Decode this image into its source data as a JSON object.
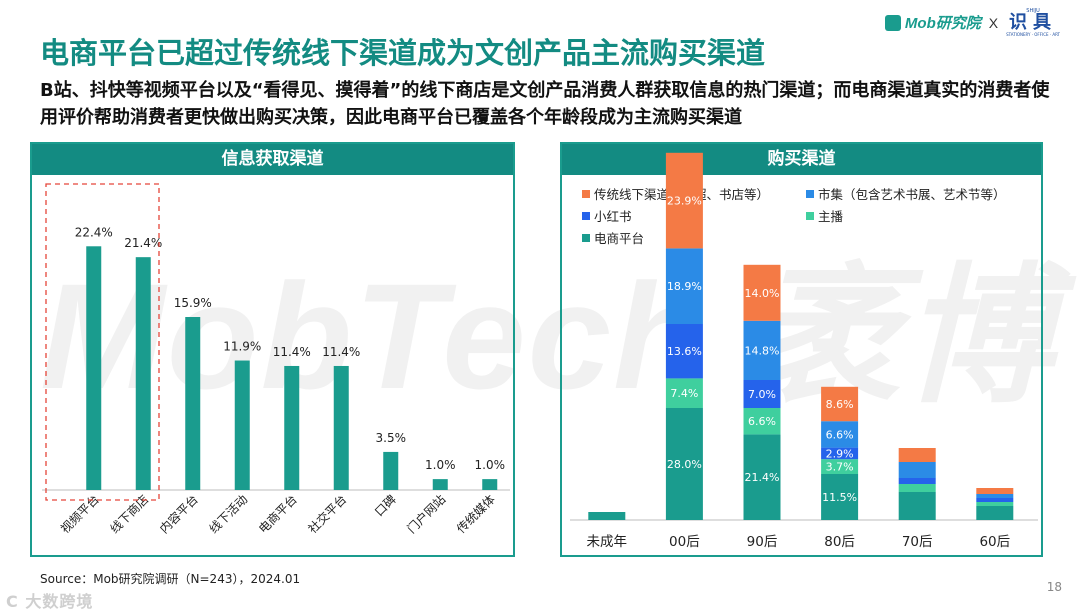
{
  "header": {
    "title": "电商平台已超过传统线下渠道成为文创产品主流购买渠道",
    "subtitle": "B站、抖快等视频平台以及“看得见、摸得着”的线下商店是文创产品消费人群获取信息的热门渠道；而电商渠道真实的消费者使用评价帮助消费者更快做出购买决策，因此电商平台已覆盖各个年龄段成为主流购买渠道",
    "logo_mob": "Mob研究院",
    "logo_x": "X",
    "logo_partner": "识具",
    "logo_partner_top": "SHIJU",
    "logo_partner_bottom": "STATIONERY · OFFICE · ART"
  },
  "watermark": "MobTech 袤博",
  "footer": {
    "source": "Source：Mob研究院调研（N=243），2024.01",
    "page_number": "18",
    "corner_mark": "C 大数跨境"
  },
  "colors": {
    "teal": "#1a9c8e",
    "orange": "#f47a45",
    "blue": "#2b8be6",
    "dark_blue": "#2563eb",
    "mint": "#3fcf9e",
    "dark_teal": "#138b82",
    "highlight_border": "#e5463a"
  },
  "chart_data": [
    {
      "type": "bar",
      "panel_title": "信息获取渠道",
      "categories": [
        "视频平台",
        "线下商店",
        "内容平台",
        "线下活动",
        "电商平台",
        "社交平台",
        "口碑",
        "门户网站",
        "传统媒体"
      ],
      "values": [
        22.4,
        21.4,
        15.9,
        11.9,
        11.4,
        11.4,
        3.5,
        1.0,
        1.0
      ],
      "labels": [
        "22.4%",
        "21.4%",
        "15.9%",
        "11.9%",
        "11.4%",
        "11.4%",
        "3.5%",
        "1.0%",
        "1.0%"
      ],
      "unit": "%",
      "ylim": [
        0,
        25
      ],
      "highlight_categories": [
        "视频平台",
        "线下商店"
      ],
      "color": "#1a9c8e"
    },
    {
      "type": "bar",
      "stacked": true,
      "panel_title": "购买渠道",
      "categories": [
        "未成年",
        "00后",
        "90后",
        "80后",
        "70后",
        "60后"
      ],
      "series": [
        {
          "name": "电商平台",
          "color": "#1a9c8e",
          "values": [
            2.0,
            28.0,
            21.4,
            11.5,
            7.0,
            3.5
          ],
          "labels": [
            "",
            "28.0%",
            "21.4%",
            "11.5%",
            "",
            ""
          ]
        },
        {
          "name": "主播",
          "color": "#3fcf9e",
          "values": [
            0,
            7.4,
            6.6,
            3.7,
            2.0,
            1.0
          ],
          "labels": [
            "",
            "7.4%",
            "6.6%",
            "3.7%",
            "",
            ""
          ]
        },
        {
          "name": "小红书",
          "color": "#2563eb",
          "values": [
            0,
            13.6,
            7.0,
            2.9,
            1.5,
            1.0
          ],
          "labels": [
            "",
            "13.6%",
            "7.0%",
            "2.9%",
            "",
            ""
          ]
        },
        {
          "name": "市集（包含艺术书展、艺术节等）",
          "color": "#2b8be6",
          "values": [
            0,
            18.9,
            14.8,
            6.6,
            4.0,
            1.0
          ],
          "labels": [
            "",
            "18.9%",
            "14.8%",
            "6.6%",
            "",
            ""
          ]
        },
        {
          "name": "传统线下渠道（商超、书店等）",
          "color": "#f47a45",
          "values": [
            0,
            23.9,
            14.0,
            8.6,
            3.5,
            1.5
          ],
          "labels": [
            "",
            "23.9%",
            "14.0%",
            "8.6%",
            "",
            ""
          ]
        }
      ],
      "legend_order": [
        "传统线下渠道（商超、书店等）",
        "市集（包含艺术书展、艺术节等）",
        "小红书",
        "主播",
        "电商平台"
      ],
      "unit": "%",
      "ylim": [
        0,
        100
      ]
    }
  ]
}
